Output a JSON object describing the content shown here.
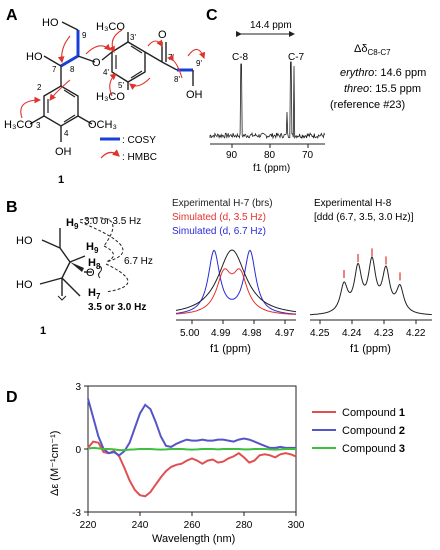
{
  "panels": {
    "A": {
      "letter": "A",
      "compound_label": "1",
      "structure_labels": {
        "ho_top": "HO",
        "ho_left": "HO",
        "oh_bottom": "OH",
        "oh_right": "OH",
        "h3co_top": "H₃CO",
        "h3co_left": "H₃CO",
        "och3": "OCH₃",
        "o_ether": "O",
        "o_ketone": "O",
        "h3co_right": "H₃CO",
        "n9": "9",
        "n8": "8",
        "n7": "7",
        "n2": "2",
        "n3": "3",
        "n4": "4",
        "n3p": "3'",
        "n4p": "4'",
        "n5p": "5'",
        "n7p": "7'",
        "n8p": "8'",
        "n9p": "9'"
      },
      "legend": [
        {
          "label": ": COSY",
          "style": "line",
          "color": "#1a3fd6"
        },
        {
          "label": ": HMBC",
          "style": "arrow",
          "color": "#e0332c"
        }
      ]
    },
    "C": {
      "letter": "C",
      "ppm_gap_label": "14.4 ppm",
      "peak_labels": [
        "C-8",
        "C-7"
      ],
      "delta_label": "Δδ",
      "delta_sub": "C8-C7",
      "notes": [
        {
          "label": "erythro",
          "value": ": 14.6 ppm"
        },
        {
          "label": "threo",
          "value": ": 15.5 ppm"
        }
      ],
      "reference": "(reference #23)",
      "x_ticks": [
        "90",
        "80",
        "70"
      ],
      "x_label": "f1 (ppm)"
    },
    "B": {
      "letter": "B",
      "compound_label": "1",
      "couplings": [
        "3.0 or 3.5 Hz",
        "6.7 Hz",
        "3.5 or 3.0 Hz"
      ],
      "atoms": {
        "h9a": "H",
        "h9b": "H",
        "h8": "H",
        "h7": "H",
        "ho_top": "HO",
        "ho_left": "HO",
        "o": "O",
        "s9a": "9",
        "s9b": "9",
        "s8": "8",
        "s7": "7"
      },
      "h7_title": "Experimental H-7 (brs)",
      "h7_sim1": "Simulated (d, 3.5 Hz)",
      "h7_sim2": "Simulated (d, 6.7 Hz)",
      "h7_ticks": [
        "5.00",
        "4.99",
        "4.98",
        "4.97"
      ],
      "h8_title": "Experimental H-8",
      "h8_subtitle": "[ddd (6.7, 3.5, 3.0 Hz)]",
      "h8_ticks": [
        "4.25",
        "4.24",
        "4.23",
        "4.22"
      ],
      "x_label": "f1 (ppm)",
      "colors": {
        "experimental": "#222222",
        "sim_35": "#e0332c",
        "sim_67": "#2a2ad8"
      }
    }
  },
  "chart_data": {
    "type": "line",
    "panel": "D",
    "title": "",
    "xlabel": "Wavelength (nm)",
    "ylabel": "Δε (M⁻¹cm⁻¹)",
    "xlim": [
      220,
      300
    ],
    "ylim": [
      -3,
      3
    ],
    "x_ticks": [
      "220",
      "240",
      "260",
      "280",
      "300"
    ],
    "y_ticks": [
      "3",
      "0",
      "-3"
    ],
    "x": [
      220,
      222,
      224,
      226,
      228,
      230,
      232,
      234,
      236,
      238,
      240,
      242,
      244,
      246,
      248,
      250,
      252,
      254,
      256,
      258,
      260,
      262,
      264,
      266,
      268,
      270,
      272,
      274,
      276,
      278,
      280,
      282,
      284,
      286,
      288,
      290,
      292,
      294,
      296,
      298,
      300
    ],
    "series": [
      {
        "name": "Compound 1",
        "color": "#e05050",
        "values": [
          0.05,
          0.35,
          0.3,
          -0.15,
          -0.2,
          -0.1,
          -0.35,
          -0.9,
          -1.5,
          -1.95,
          -2.2,
          -2.25,
          -2.05,
          -1.7,
          -1.35,
          -1.05,
          -0.85,
          -0.75,
          -0.7,
          -0.55,
          -0.45,
          -0.55,
          -0.7,
          -0.55,
          -0.5,
          -0.65,
          -0.6,
          -0.45,
          -0.35,
          -0.2,
          -0.4,
          -0.65,
          -0.55,
          -0.3,
          -0.25,
          -0.3,
          -0.4,
          -0.25,
          -0.2,
          -0.25,
          -0.35
        ]
      },
      {
        "name": "Compound 2",
        "color": "#5555c8",
        "values": [
          2.4,
          1.5,
          0.6,
          0.0,
          -0.2,
          -0.15,
          -0.3,
          -0.1,
          0.3,
          1.0,
          1.7,
          2.1,
          1.9,
          1.3,
          0.6,
          0.15,
          0.1,
          0.25,
          0.35,
          0.45,
          0.4,
          0.4,
          0.45,
          0.4,
          0.4,
          0.45,
          0.45,
          0.4,
          0.35,
          0.45,
          0.5,
          0.45,
          0.35,
          0.25,
          0.15,
          0.05,
          0.05,
          0.1,
          0.05,
          0.05,
          0.05
        ]
      },
      {
        "name": "Compound 3",
        "color": "#3fbf3f",
        "values": [
          0.02,
          0.05,
          0.03,
          0.0,
          0.0,
          -0.02,
          -0.05,
          -0.05,
          -0.03,
          -0.02,
          0.0,
          0.0,
          0.0,
          -0.02,
          -0.03,
          -0.02,
          0.0,
          0.0,
          0.0,
          -0.02,
          -0.03,
          -0.02,
          0.0,
          0.0,
          0.0,
          -0.02,
          0.0,
          0.0,
          0.0,
          0.0,
          -0.02,
          -0.02,
          0.0,
          0.0,
          0.0,
          -0.02,
          -0.03,
          -0.02,
          0.0,
          0.0,
          0.0
        ]
      }
    ],
    "legend": [
      {
        "prefix": "Compound ",
        "num": "1"
      },
      {
        "prefix": "Compound ",
        "num": "2"
      },
      {
        "prefix": "Compound ",
        "num": "3"
      }
    ],
    "legend_position": "right",
    "letter": "D"
  }
}
